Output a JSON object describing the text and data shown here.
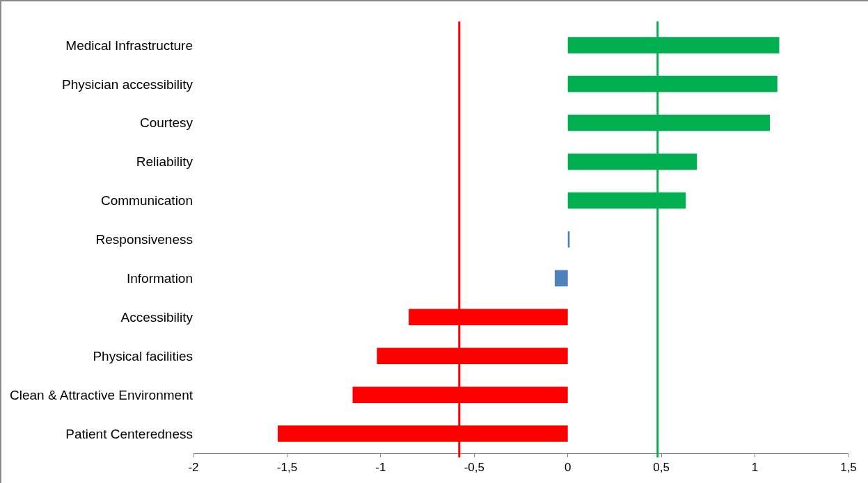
{
  "chart_data": {
    "type": "bar",
    "orientation": "horizontal",
    "categories": [
      "Medical Infrastructure",
      "Physician accessibility",
      "Courtesy",
      "Reliability",
      "Communication",
      "Responsiveness",
      "Information",
      "Accessibility",
      "Physical facilities",
      "Clean & Attractive Environment",
      "Patient Centeredness"
    ],
    "values": [
      1.13,
      1.12,
      1.08,
      0.69,
      0.63,
      0.01,
      -0.07,
      -0.85,
      -1.02,
      -1.15,
      -1.55
    ],
    "colors": [
      "#00b050",
      "#00b050",
      "#00b050",
      "#00b050",
      "#00b050",
      "#4f81bd",
      "#4f81bd",
      "#ff0000",
      "#ff0000",
      "#ff0000",
      "#ff0000"
    ],
    "xlim": [
      -2,
      1.5
    ],
    "xticks": [
      {
        "value": -2,
        "label": "-2"
      },
      {
        "value": -1.5,
        "label": "-1,5"
      },
      {
        "value": -1,
        "label": "-1"
      },
      {
        "value": -0.5,
        "label": "-0,5"
      },
      {
        "value": 0,
        "label": "0"
      },
      {
        "value": 0.5,
        "label": "0,5"
      },
      {
        "value": 1,
        "label": "1"
      },
      {
        "value": 1.5,
        "label": "1,5"
      }
    ],
    "ref_lines": [
      {
        "axis": "x",
        "value": -0.58,
        "color": "#ff0000"
      },
      {
        "axis": "x",
        "value": 0.48,
        "color": "#00b050"
      }
    ],
    "grid": false
  }
}
